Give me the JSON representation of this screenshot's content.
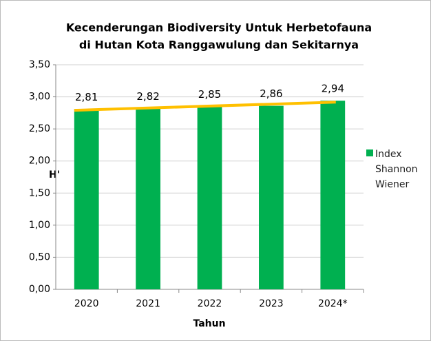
{
  "chart_data": {
    "type": "bar",
    "title": [
      "Kecenderungan Biodiversity Untuk Herbetofauna",
      "di Hutan Kota Ranggawulung dan Sekitarnya"
    ],
    "x_label": "Tahun",
    "y_label": "H'",
    "categories": [
      "2020",
      "2021",
      "2022",
      "2023",
      "2024*"
    ],
    "series": [
      {
        "name": "Index Shannon Wiener",
        "color": "#00b050",
        "values": [
          2.81,
          2.82,
          2.85,
          2.86,
          2.94
        ],
        "value_labels": [
          "2,81",
          "2,82",
          "2,85",
          "2,86",
          "2,94"
        ]
      }
    ],
    "trendline": true,
    "trendline_color": "#ffc000",
    "ylim": [
      0,
      3.5
    ],
    "yticks": [
      {
        "value": 0,
        "label": "0,00"
      },
      {
        "value": 0.5,
        "label": "0,50"
      },
      {
        "value": 1,
        "label": "1,00"
      },
      {
        "value": 1.5,
        "label": "1,50"
      },
      {
        "value": 2,
        "label": "2,00"
      },
      {
        "value": 2.5,
        "label": "2,50"
      },
      {
        "value": 3,
        "label": "3,00"
      },
      {
        "value": 3.5,
        "label": "3,50"
      }
    ],
    "grid": true,
    "legend": "right"
  }
}
